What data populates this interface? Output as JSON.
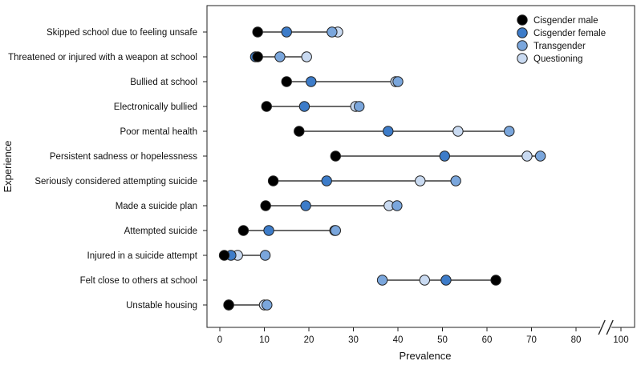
{
  "chart_data": {
    "type": "dot-plot",
    "title": "",
    "xlabel": "Prevalence",
    "ylabel": "Experience",
    "xlim": [
      0,
      100
    ],
    "axis_break": [
      85,
      95
    ],
    "xticks": [
      0,
      10,
      20,
      30,
      40,
      50,
      60,
      70,
      80,
      100
    ],
    "legend_position": "top-right",
    "categories": [
      "Skipped school due to feeling unsafe",
      "Threatened or injured with a weapon at school",
      "Bullied at school",
      "Electronically bullied",
      "Poor mental health",
      "Persistent sadness or hopelessness",
      "Seriously considered attempting suicide",
      "Made a suicide plan",
      "Attempted suicide",
      "Injured in a suicide attempt",
      "Felt close to others at school",
      "Unstable housing"
    ],
    "series": [
      {
        "name": "Cisgender male",
        "color": "#000000",
        "values": [
          8.5,
          8.5,
          15,
          10.5,
          17.8,
          26,
          12,
          10.3,
          5.3,
          1,
          62,
          2
        ]
      },
      {
        "name": "Cisgender female",
        "color": "#3d7cc9",
        "values": [
          15,
          8,
          20.5,
          19,
          37.8,
          50.5,
          24,
          19.3,
          11,
          2.5,
          50.8,
          2
        ]
      },
      {
        "name": "Transgender",
        "color": "#7aa6dc",
        "values": [
          25.2,
          13.5,
          40,
          31.3,
          65,
          72,
          53,
          39.8,
          26,
          10.2,
          36.5,
          10.6
        ]
      },
      {
        "name": "Questioning",
        "color": "#c9daf1",
        "values": [
          26.5,
          19.5,
          39.5,
          30.5,
          53.5,
          69,
          45,
          38,
          25.8,
          4,
          46,
          10
        ]
      }
    ]
  }
}
